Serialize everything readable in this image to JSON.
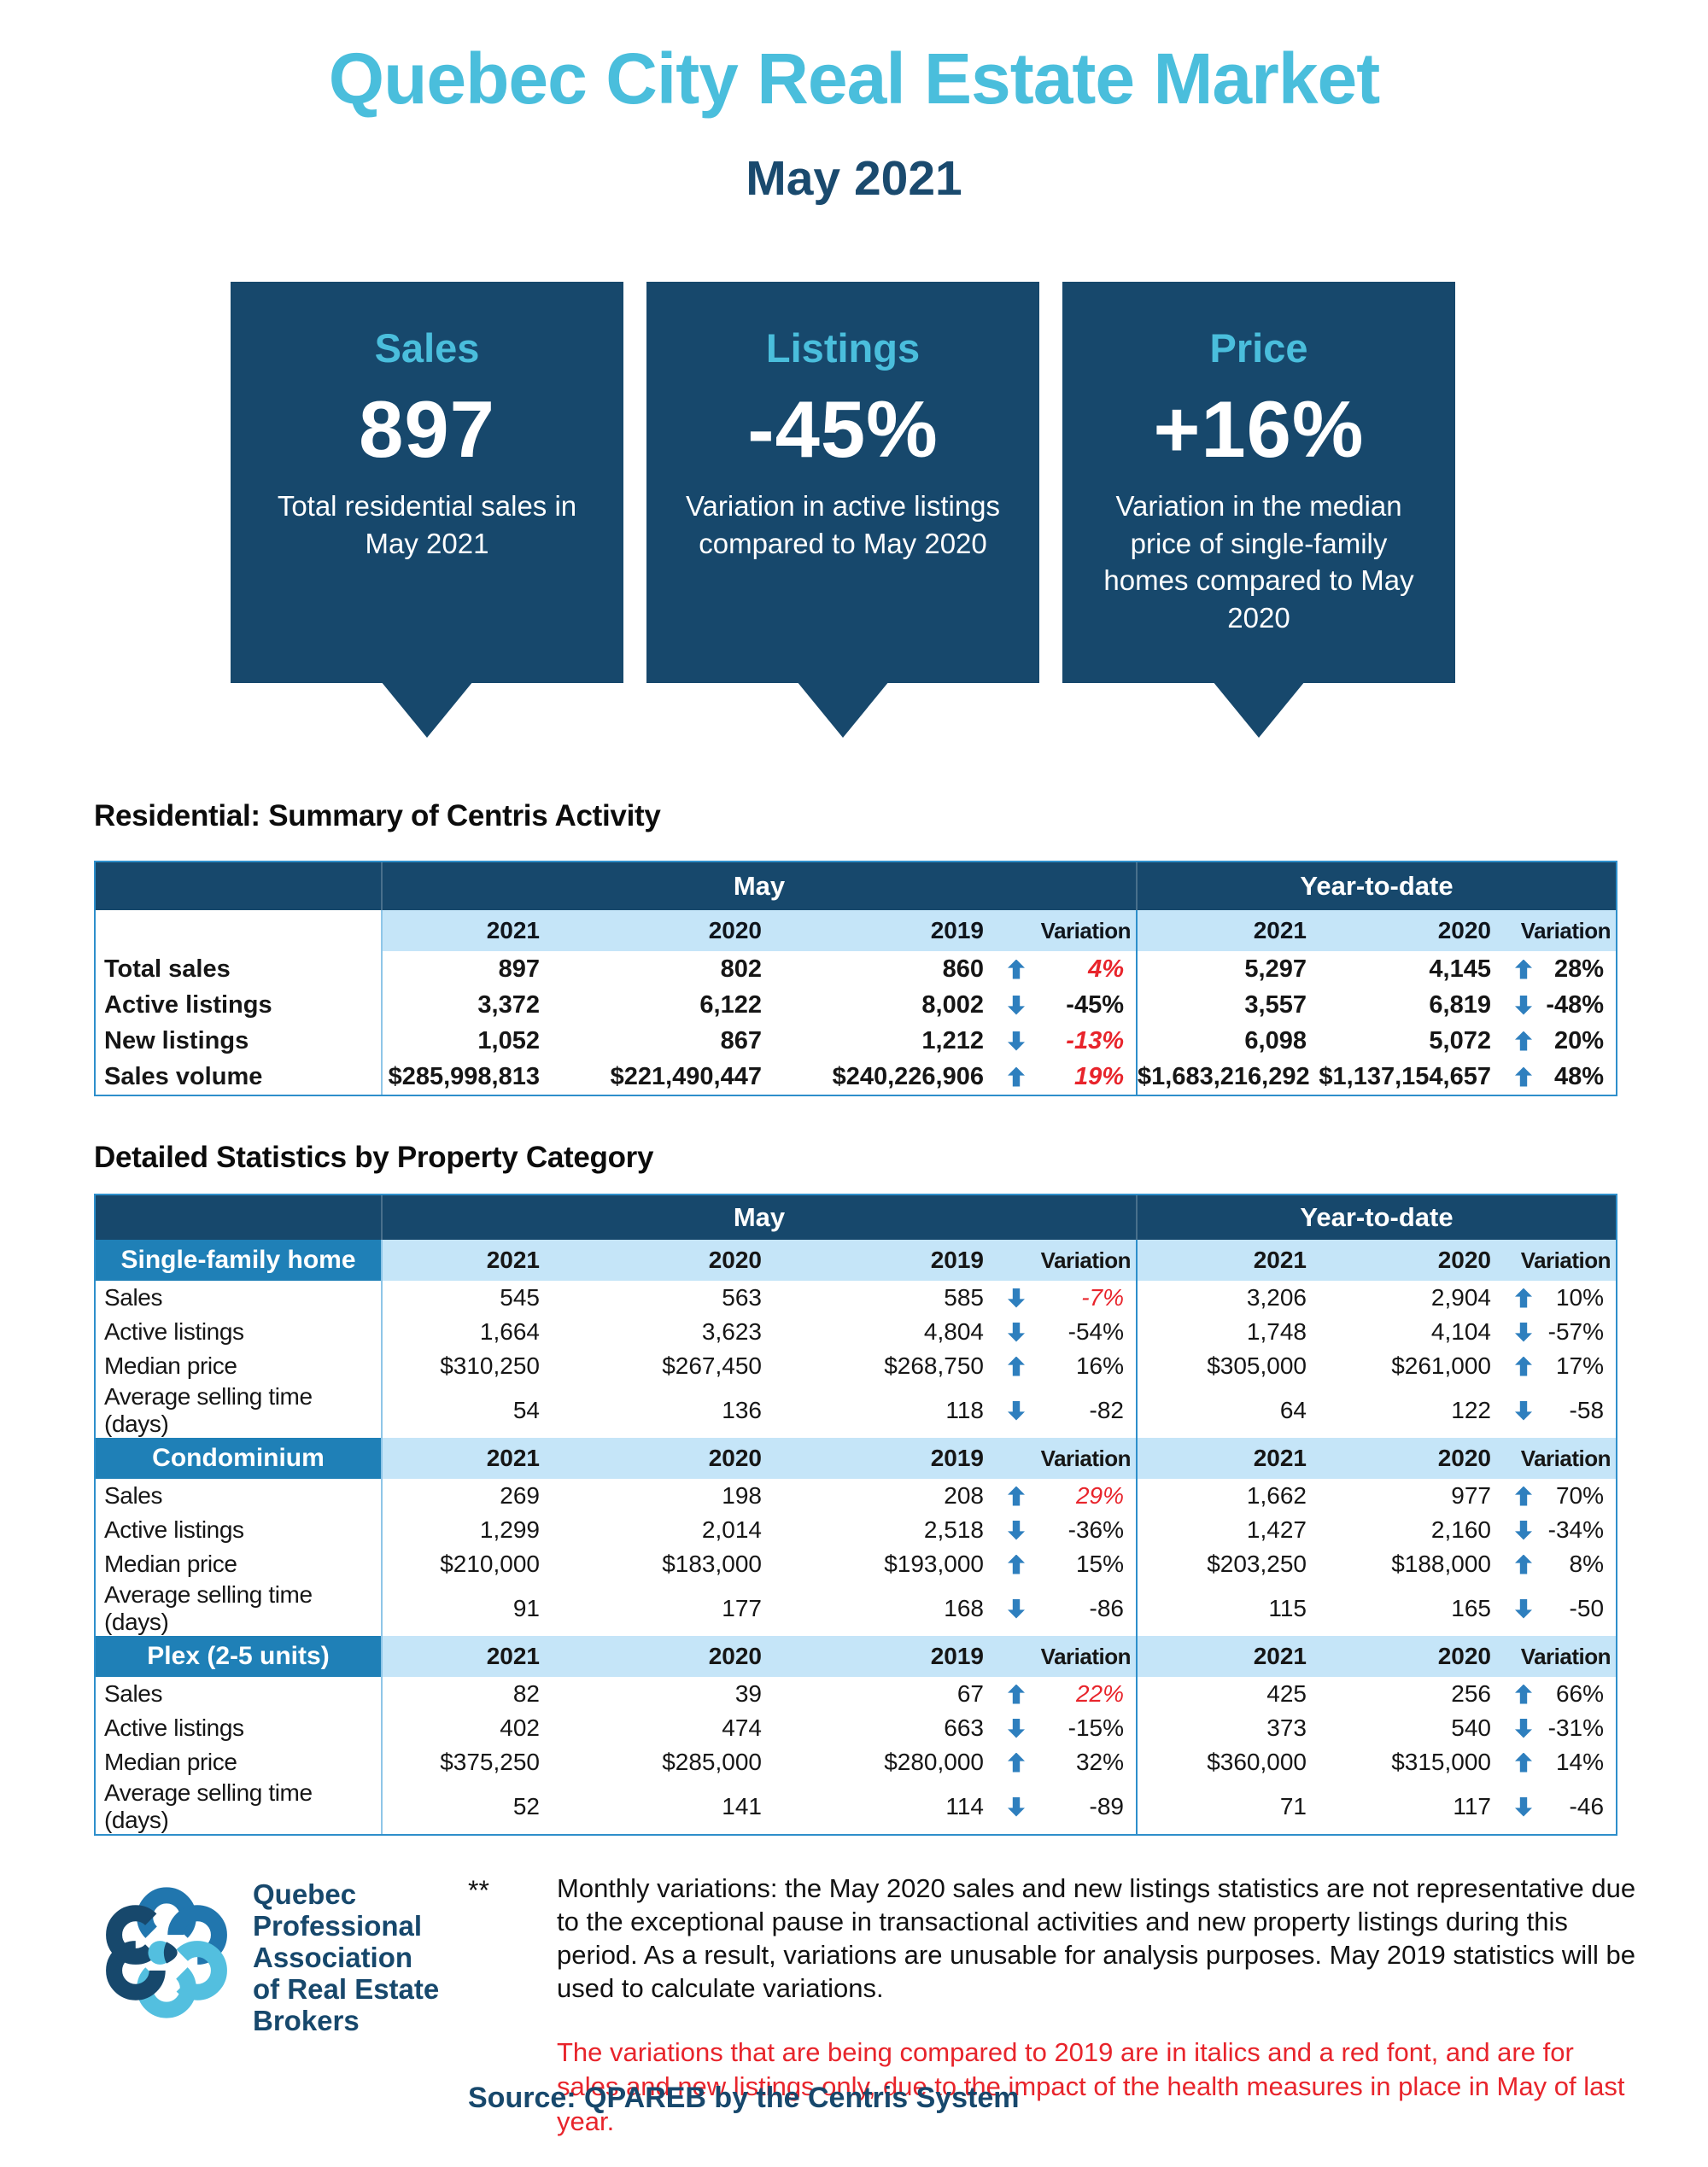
{
  "header": {
    "title": "Quebec City Real Estate Market",
    "subtitle": "May 2021"
  },
  "callouts": [
    {
      "title": "Sales",
      "value": "897",
      "description": "Total residential sales in May 2021"
    },
    {
      "title": "Listings",
      "value": "-45%",
      "description": "Variation in active listings compared to May 2020"
    },
    {
      "title": "Price",
      "value": "+16%",
      "description": "Variation in the median price of single-family homes compared to May 2020"
    }
  ],
  "summary_table": {
    "title": "Residential: Summary of Centris Activity",
    "group_headers": [
      "May",
      "Year-to-date"
    ],
    "columns": {
      "may": [
        "2021",
        "2020",
        "2019",
        "Variation"
      ],
      "ytd": [
        "2021",
        "2020",
        "Variation"
      ]
    },
    "rows": [
      {
        "label": "Total sales",
        "may": [
          "897",
          "802",
          "860"
        ],
        "may_var": {
          "dir": "up",
          "value": "4%",
          "red": true
        },
        "ytd": [
          "5,297",
          "4,145"
        ],
        "ytd_var": {
          "dir": "up",
          "value": "28%",
          "red": false
        }
      },
      {
        "label": "Active listings",
        "may": [
          "3,372",
          "6,122",
          "8,002"
        ],
        "may_var": {
          "dir": "down",
          "value": "-45%",
          "red": false
        },
        "ytd": [
          "3,557",
          "6,819"
        ],
        "ytd_var": {
          "dir": "down",
          "value": "-48%",
          "red": false
        }
      },
      {
        "label": "New listings",
        "may": [
          "1,052",
          "867",
          "1,212"
        ],
        "may_var": {
          "dir": "down",
          "value": "-13%",
          "red": true
        },
        "ytd": [
          "6,098",
          "5,072"
        ],
        "ytd_var": {
          "dir": "up",
          "value": "20%",
          "red": false
        }
      },
      {
        "label": "Sales volume",
        "may": [
          "$285,998,813",
          "$221,490,447",
          "$240,226,906"
        ],
        "may_var": {
          "dir": "up",
          "value": "19%",
          "red": true
        },
        "ytd": [
          "$1,683,216,292",
          "$1,137,154,657"
        ],
        "ytd_var": {
          "dir": "up",
          "value": "48%",
          "red": false
        }
      }
    ]
  },
  "detail_table": {
    "title": "Detailed Statistics by Property Category",
    "group_headers": [
      "May",
      "Year-to-date"
    ],
    "columns": {
      "may": [
        "2021",
        "2020",
        "2019",
        "Variation"
      ],
      "ytd": [
        "2021",
        "2020",
        "Variation"
      ]
    },
    "sections": [
      {
        "category": "Single-family home",
        "rows": [
          {
            "label": "Sales",
            "may": [
              "545",
              "563",
              "585"
            ],
            "may_var": {
              "dir": "down",
              "value": "-7%",
              "red": true
            },
            "ytd": [
              "3,206",
              "2,904"
            ],
            "ytd_var": {
              "dir": "up",
              "value": "10%",
              "red": false
            }
          },
          {
            "label": "Active listings",
            "may": [
              "1,664",
              "3,623",
              "4,804"
            ],
            "may_var": {
              "dir": "down",
              "value": "-54%",
              "red": false
            },
            "ytd": [
              "1,748",
              "4,104"
            ],
            "ytd_var": {
              "dir": "down",
              "value": "-57%",
              "red": false
            }
          },
          {
            "label": "Median price",
            "may": [
              "$310,250",
              "$267,450",
              "$268,750"
            ],
            "may_var": {
              "dir": "up",
              "value": "16%",
              "red": false
            },
            "ytd": [
              "$305,000",
              "$261,000"
            ],
            "ytd_var": {
              "dir": "up",
              "value": "17%",
              "red": false
            }
          },
          {
            "label": "Average selling time (days)",
            "may": [
              "54",
              "136",
              "118"
            ],
            "may_var": {
              "dir": "down",
              "value": "-82",
              "red": false
            },
            "ytd": [
              "64",
              "122"
            ],
            "ytd_var": {
              "dir": "down",
              "value": "-58",
              "red": false
            }
          }
        ]
      },
      {
        "category": "Condominium",
        "rows": [
          {
            "label": "Sales",
            "may": [
              "269",
              "198",
              "208"
            ],
            "may_var": {
              "dir": "up",
              "value": "29%",
              "red": true
            },
            "ytd": [
              "1,662",
              "977"
            ],
            "ytd_var": {
              "dir": "up",
              "value": "70%",
              "red": false
            }
          },
          {
            "label": "Active listings",
            "may": [
              "1,299",
              "2,014",
              "2,518"
            ],
            "may_var": {
              "dir": "down",
              "value": "-36%",
              "red": false
            },
            "ytd": [
              "1,427",
              "2,160"
            ],
            "ytd_var": {
              "dir": "down",
              "value": "-34%",
              "red": false
            }
          },
          {
            "label": "Median price",
            "may": [
              "$210,000",
              "$183,000",
              "$193,000"
            ],
            "may_var": {
              "dir": "up",
              "value": "15%",
              "red": false
            },
            "ytd": [
              "$203,250",
              "$188,000"
            ],
            "ytd_var": {
              "dir": "up",
              "value": "8%",
              "red": false
            }
          },
          {
            "label": "Average selling time (days)",
            "may": [
              "91",
              "177",
              "168"
            ],
            "may_var": {
              "dir": "down",
              "value": "-86",
              "red": false
            },
            "ytd": [
              "115",
              "165"
            ],
            "ytd_var": {
              "dir": "down",
              "value": "-50",
              "red": false
            }
          }
        ]
      },
      {
        "category": "Plex (2-5 units)",
        "rows": [
          {
            "label": "Sales",
            "may": [
              "82",
              "39",
              "67"
            ],
            "may_var": {
              "dir": "up",
              "value": "22%",
              "red": true
            },
            "ytd": [
              "425",
              "256"
            ],
            "ytd_var": {
              "dir": "up",
              "value": "66%",
              "red": false
            }
          },
          {
            "label": "Active listings",
            "may": [
              "402",
              "474",
              "663"
            ],
            "may_var": {
              "dir": "down",
              "value": "-15%",
              "red": false
            },
            "ytd": [
              "373",
              "540"
            ],
            "ytd_var": {
              "dir": "down",
              "value": "-31%",
              "red": false
            }
          },
          {
            "label": "Median price",
            "may": [
              "$375,250",
              "$285,000",
              "$280,000"
            ],
            "may_var": {
              "dir": "up",
              "value": "32%",
              "red": false
            },
            "ytd": [
              "$360,000",
              "$315,000"
            ],
            "ytd_var": {
              "dir": "up",
              "value": "14%",
              "red": false
            }
          },
          {
            "label": "Average selling time (days)",
            "may": [
              "52",
              "141",
              "114"
            ],
            "may_var": {
              "dir": "down",
              "value": "-89",
              "red": false
            },
            "ytd": [
              "71",
              "117"
            ],
            "ytd_var": {
              "dir": "down",
              "value": "-46",
              "red": false
            }
          }
        ]
      }
    ]
  },
  "footer": {
    "logo_lines": [
      "Quebec",
      "Professional",
      "Association",
      "of Real Estate",
      "Brokers"
    ],
    "footnote_marker": "**",
    "footnote": "Monthly variations: the May 2020 sales and new listings statistics are not representative due to the exceptional pause in transactional activities and new property listings during this period. As a result, variations are unusable for analysis purposes. May 2019 statistics will be used to calculate variations.",
    "footnote_red": "The variations that are being compared to 2019 are in italics and a red font, and are for sales and new listings only, due to the impact of the health measures in place in May of last year.",
    "source": "Source: QPAREB by the Centris System"
  },
  "colors": {
    "navy": "#17486C",
    "accent_light_blue": "#4ABEDC",
    "medium_blue": "#2176AE",
    "category_blue": "#1F80B7",
    "light_blue_row": "#C5E5F8",
    "arrow_blue": "#2E7FBE",
    "red": "#E8242B",
    "border_blue": "#2E8FCB",
    "border_light": "#8FC6E8"
  }
}
